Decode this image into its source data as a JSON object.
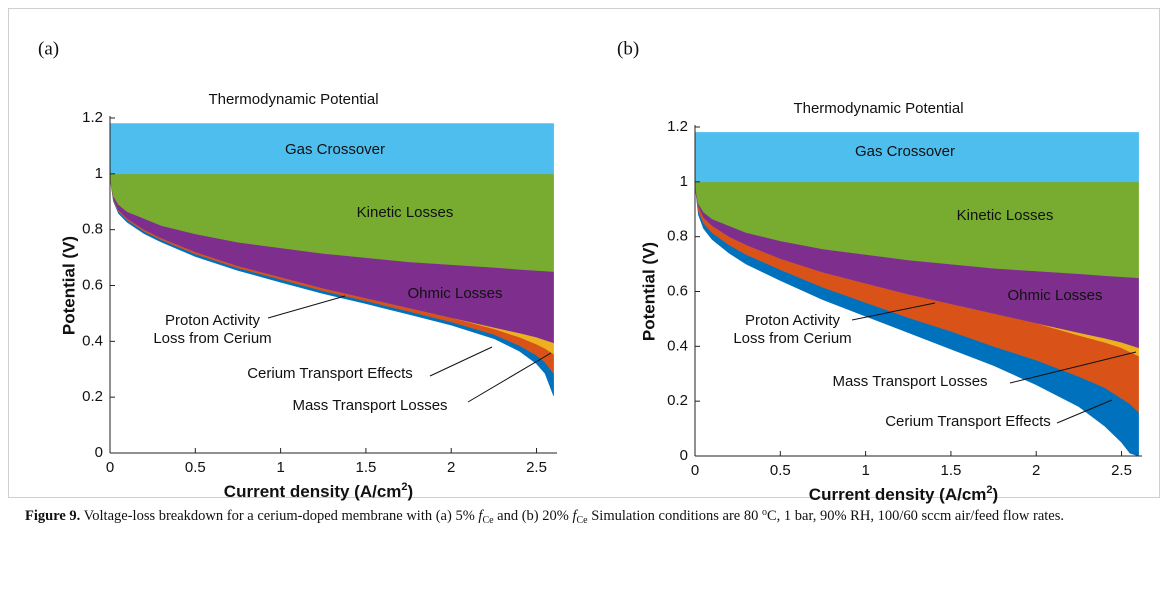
{
  "chart_data": [
    {
      "type": "stacked_area",
      "panel": "(a)",
      "annotation": "Thermodynamic Potential",
      "ylabel": "Potential (V)",
      "xlabel": [
        "Current density (A/cm",
        "2",
        ")"
      ],
      "xlim": [
        0,
        2.62
      ],
      "xticks": [
        0,
        0.5,
        1,
        1.5,
        2,
        2.5
      ],
      "ylim": [
        0,
        1.2
      ],
      "yticks": [
        0,
        0.2,
        0.4,
        0.6,
        0.8,
        1,
        1.2
      ],
      "x": [
        0,
        0.02,
        0.05,
        0.1,
        0.2,
        0.3,
        0.5,
        0.75,
        1,
        1.25,
        1.5,
        1.75,
        2,
        2.25,
        2.4,
        2.5,
        2.55,
        2.6
      ],
      "series": [
        {
          "color": "#ffffff",
          "values": [
            0.99,
            0.902,
            0.858,
            0.827,
            0.786,
            0.756,
            0.704,
            0.654,
            0.612,
            0.571,
            0.535,
            0.497,
            0.458,
            0.41,
            0.365,
            0.32,
            0.285,
            0.205
          ]
        },
        {
          "name": "Cerium Transport Effects",
          "color": "#0072bd",
          "values": [
            0,
            0.005,
            0.007,
            0.008,
            0.008,
            0.008,
            0.009,
            0.009,
            0.01,
            0.01,
            0.01,
            0.011,
            0.012,
            0.015,
            0.02,
            0.03,
            0.04,
            0.08
          ]
        },
        {
          "name": "Proton Activity Loss from Cerium",
          "color": "#d95319",
          "values": [
            0,
            0.003,
            0.005,
            0.005,
            0.006,
            0.006,
            0.007,
            0.007,
            0.008,
            0.009,
            0.01,
            0.012,
            0.015,
            0.02,
            0.03,
            0.04,
            0.05,
            0.07
          ]
        },
        {
          "name": "Mass Transport Losses",
          "color": "#edb120",
          "values": [
            0,
            0,
            0,
            0,
            0,
            0,
            0,
            0,
            0,
            0,
            0,
            0,
            0,
            0.005,
            0.015,
            0.025,
            0.03,
            0.04
          ]
        },
        {
          "name": "Ohmic Losses",
          "color": "#7e2f8e",
          "values": [
            0,
            0.01,
            0.02,
            0.025,
            0.04,
            0.045,
            0.065,
            0.085,
            0.105,
            0.125,
            0.145,
            0.165,
            0.19,
            0.215,
            0.228,
            0.239,
            0.247,
            0.255
          ]
        },
        {
          "name": "Kinetic Losses",
          "color": "#77ac30",
          "values": [
            0.01,
            0.08,
            0.11,
            0.135,
            0.16,
            0.185,
            0.215,
            0.245,
            0.265,
            0.285,
            0.3,
            0.315,
            0.325,
            0.335,
            0.342,
            0.346,
            0.348,
            0.35
          ]
        },
        {
          "name": "Gas Crossover",
          "color": "#4dbeee",
          "values": [
            0.18,
            0.18,
            0.18,
            0.18,
            0.18,
            0.18,
            0.18,
            0.18,
            0.18,
            0.18,
            0.18,
            0.18,
            0.18,
            0.18,
            0.18,
            0.18,
            0.18,
            0.18
          ]
        }
      ]
    },
    {
      "type": "stacked_area",
      "panel": "(b)",
      "annotation": "Thermodynamic Potential",
      "ylabel": "Potential (V)",
      "xlabel": [
        "Current density (A/cm",
        "2",
        ")"
      ],
      "xlim": [
        0,
        2.62
      ],
      "xticks": [
        0,
        0.5,
        1,
        1.5,
        2,
        2.5
      ],
      "ylim": [
        0,
        1.2
      ],
      "yticks": [
        0,
        0.2,
        0.4,
        0.6,
        0.8,
        1,
        1.2
      ],
      "x": [
        0,
        0.02,
        0.05,
        0.1,
        0.2,
        0.3,
        0.5,
        0.75,
        1,
        1.25,
        1.5,
        1.75,
        2,
        2.25,
        2.4,
        2.5,
        2.55,
        2.6
      ],
      "series": [
        {
          "color": "#ffffff",
          "values": [
            0.99,
            0.88,
            0.83,
            0.79,
            0.74,
            0.7,
            0.64,
            0.57,
            0.51,
            0.45,
            0.39,
            0.33,
            0.26,
            0.18,
            0.11,
            0.05,
            0.01,
            0
          ]
        },
        {
          "name": "Cerium Transport Effects",
          "color": "#0072bd",
          "values": [
            0,
            0.015,
            0.02,
            0.025,
            0.03,
            0.035,
            0.04,
            0.045,
            0.05,
            0.055,
            0.065,
            0.07,
            0.09,
            0.11,
            0.14,
            0.16,
            0.18,
            0.16
          ]
        },
        {
          "name": "Proton Activity Loss from Cerium",
          "color": "#d95319",
          "values": [
            0,
            0.015,
            0.02,
            0.025,
            0.03,
            0.035,
            0.04,
            0.055,
            0.07,
            0.085,
            0.1,
            0.12,
            0.135,
            0.15,
            0.165,
            0.185,
            0.19,
            0.205
          ]
        },
        {
          "name": "Mass Transport Losses",
          "color": "#edb120",
          "values": [
            0,
            0,
            0,
            0,
            0,
            0,
            0,
            0,
            0,
            0,
            0,
            0,
            0,
            0.01,
            0.015,
            0.02,
            0.025,
            0.03
          ]
        },
        {
          "name": "Ohmic Losses",
          "color": "#7e2f8e",
          "values": [
            0,
            0.01,
            0.02,
            0.025,
            0.04,
            0.045,
            0.065,
            0.085,
            0.105,
            0.125,
            0.145,
            0.165,
            0.19,
            0.215,
            0.228,
            0.239,
            0.247,
            0.255
          ]
        },
        {
          "name": "Kinetic Losses",
          "color": "#77ac30",
          "values": [
            0.01,
            0.08,
            0.11,
            0.135,
            0.16,
            0.185,
            0.215,
            0.245,
            0.265,
            0.285,
            0.3,
            0.315,
            0.325,
            0.335,
            0.342,
            0.346,
            0.348,
            0.35
          ]
        },
        {
          "name": "Gas Crossover",
          "color": "#4dbeee",
          "values": [
            0.18,
            0.18,
            0.18,
            0.18,
            0.18,
            0.18,
            0.18,
            0.18,
            0.18,
            0.18,
            0.18,
            0.18,
            0.18,
            0.18,
            0.18,
            0.18,
            0.18,
            0.18
          ]
        }
      ]
    }
  ],
  "caption": [
    {
      "text": "Figure 9.",
      "style": "bold"
    },
    {
      "text": " Voltage-loss breakdown for a cerium-doped membrane with (a) 5% ",
      "style": "plain"
    },
    {
      "text": "f",
      "style": "italic"
    },
    {
      "text": "Ce",
      "style": "sub"
    },
    {
      "text": " and (b) 20% ",
      "style": "plain"
    },
    {
      "text": "f",
      "style": "italic"
    },
    {
      "text": "Ce",
      "style": "sub"
    },
    {
      "text": " Simulation conditions are 80 ",
      "style": "plain"
    },
    {
      "text": "o",
      "style": "sup"
    },
    {
      "text": "C, 1 bar, 90% RH, 100/60 sccm air/feed flow rates.",
      "style": "plain"
    }
  ]
}
